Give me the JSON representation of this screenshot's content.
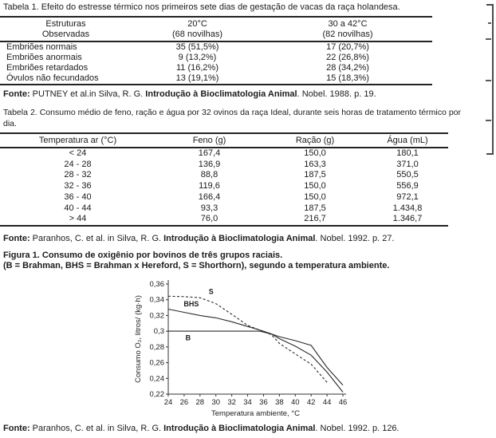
{
  "table1": {
    "caption": "Tabela 1. Efeito do estresse térmico nos primeiros sete dias de gestação de vacas da raça holandesa.",
    "headers": [
      {
        "lines": [
          "Estruturas",
          "Observadas"
        ]
      },
      {
        "lines": [
          "20°C",
          "(68 novilhas)"
        ]
      },
      {
        "lines": [
          "30 a 42°C",
          "(82 novilhas)"
        ]
      }
    ],
    "rows": [
      [
        "Embriões normais",
        "35 (51,5%)",
        "17 (20,7%)"
      ],
      [
        "Embriões anormais",
        "9 (13,2%)",
        "22 (26,8%)"
      ],
      [
        "Embriões retardados",
        "11 (16,2%)",
        "28 (34,2%)"
      ],
      [
        "Óvulos não fecundados",
        "13 (19,1%)",
        "15 (18,3%)"
      ]
    ],
    "source": [
      {
        "t": "Fonte:",
        "b": true
      },
      {
        "t": " PUTNEY et al.in Silva, R. G. ",
        "b": false
      },
      {
        "t": "Introdução à Bioclimatologia Animal",
        "b": true
      },
      {
        "t": ". Nobel. 1988. p. 19.",
        "b": false
      }
    ]
  },
  "table2": {
    "caption_line1": "Tabela 2. Consumo médio de feno, ração e água por 32 ovinos da raça Ideal, durante seis horas de tratamento térmico por",
    "caption_line2": "dia.",
    "headers": [
      "Temperatura ar (°C)",
      "Feno (g)",
      "Ração (g)",
      "Água (mL)"
    ],
    "rows": [
      [
        "< 24",
        "167,4",
        "150,0",
        "180,1"
      ],
      [
        "24 - 28",
        "136,9",
        "163,3",
        "371,0"
      ],
      [
        "28 - 32",
        "88,8",
        "187,5",
        "550,5"
      ],
      [
        "32 - 36",
        "119,6",
        "150,0",
        "556,9"
      ],
      [
        "36 - 40",
        "166,4",
        "150,0",
        "972,1"
      ],
      [
        "40 - 44",
        "93,3",
        "187,5",
        "1.434,8"
      ],
      [
        "> 44",
        "76,0",
        "216,7",
        "1.346,7"
      ]
    ],
    "source": [
      {
        "t": "Fonte:",
        "b": true
      },
      {
        "t": " Paranhos, C. et al. in Silva, R. G. ",
        "b": false
      },
      {
        "t": "Introdução à Bioclimatologia Animal",
        "b": true
      },
      {
        "t": ". Nobel. 1992. p. 27.",
        "b": false
      }
    ]
  },
  "figure1": {
    "caption_line1": "Figura 1. Consumo de oxigênio por bovinos de três grupos raciais.",
    "caption_line2": "(B = Brahman, BHS = Brahman x Hereford, S = Shorthorn), segundo a temperatura ambiente.",
    "source": [
      {
        "t": "Fonte:",
        "b": true
      },
      {
        "t": " Paranhos, C. et al. in Silva, R. G. ",
        "b": false
      },
      {
        "t": "Introdução à Bioclimatologia Animal",
        "b": true
      },
      {
        "t": ". Nobel. 1992. p. 126.",
        "b": false
      }
    ]
  },
  "chart_data": {
    "type": "line",
    "title": "Figura 1. Consumo de oxigênio por bovinos de três grupos raciais.",
    "xlabel": "Temperatura ambiente, °C",
    "ylabel": "Consumo O₂, litros/ (kg·h)",
    "xlim": [
      24,
      46
    ],
    "ylim": [
      0.22,
      0.36
    ],
    "grid": false,
    "legend": "inline-labels",
    "x_ticks": [
      24,
      26,
      28,
      30,
      32,
      34,
      36,
      38,
      40,
      42,
      44,
      46
    ],
    "y_ticks": [
      {
        "v": 0.36,
        "label": "0,36"
      },
      {
        "v": 0.34,
        "label": "0,34"
      },
      {
        "v": 0.32,
        "label": "0,32"
      },
      {
        "v": 0.3,
        "label": "0,3"
      },
      {
        "v": 0.28,
        "label": "0,28"
      },
      {
        "v": 0.26,
        "label": "0,26"
      },
      {
        "v": 0.24,
        "label": "0,24"
      },
      {
        "v": 0.22,
        "label": "0,22"
      }
    ],
    "series": [
      {
        "name": "B",
        "line": "solid",
        "label_at": [
          26.5,
          0.2885
        ],
        "points": [
          [
            24,
            0.3
          ],
          [
            34,
            0.3
          ],
          [
            35.5,
            0.3
          ],
          [
            37,
            0.2965
          ],
          [
            38,
            0.293
          ],
          [
            40,
            0.288
          ],
          [
            42,
            0.282
          ],
          [
            44,
            0.254
          ],
          [
            46,
            0.2315
          ]
        ]
      },
      {
        "name": "BHS",
        "line": "solid",
        "label_at": [
          26.9,
          0.3315
        ],
        "points": [
          [
            24,
            0.328
          ],
          [
            26,
            0.324
          ],
          [
            28,
            0.32
          ],
          [
            30,
            0.317
          ],
          [
            32,
            0.312
          ],
          [
            34,
            0.306
          ],
          [
            36,
            0.3
          ],
          [
            37,
            0.2965
          ],
          [
            38,
            0.2905
          ],
          [
            40,
            0.281
          ],
          [
            42,
            0.2695
          ],
          [
            44,
            0.248
          ],
          [
            46,
            0.2225
          ]
        ]
      },
      {
        "name": "S",
        "line": "dashed",
        "label_at": [
          29.4,
          0.3475
        ],
        "points": [
          [
            24,
            0.3445
          ],
          [
            26,
            0.344
          ],
          [
            28,
            0.3425
          ],
          [
            30,
            0.335
          ],
          [
            32,
            0.3215
          ],
          [
            34,
            0.3075
          ],
          [
            36,
            0.2995
          ],
          [
            37,
            0.2955
          ],
          [
            38,
            0.2845
          ],
          [
            40,
            0.271
          ],
          [
            42,
            0.258
          ],
          [
            44,
            0.235
          ]
        ]
      }
    ]
  }
}
